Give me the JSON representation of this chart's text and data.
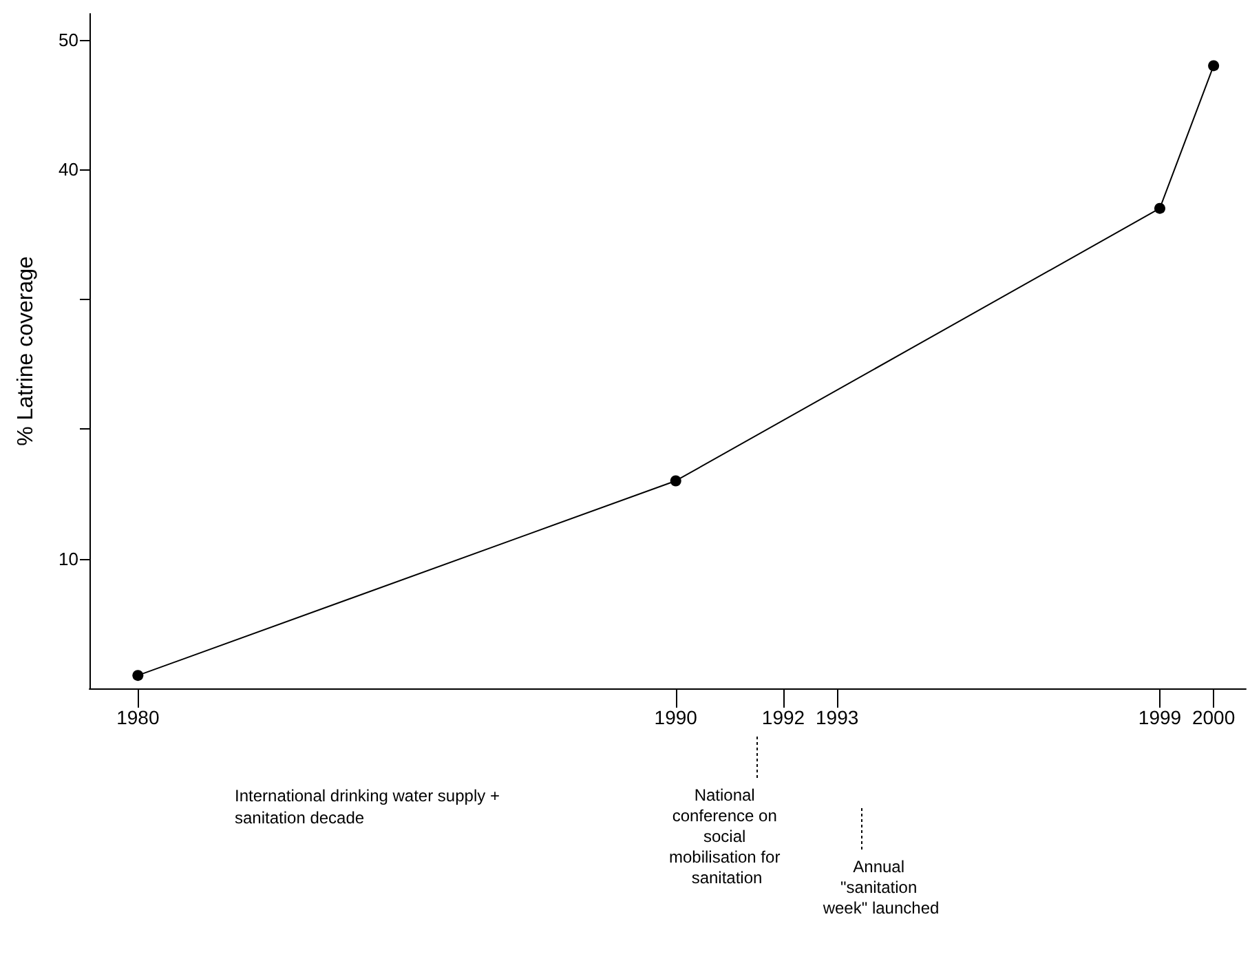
{
  "chart_data": {
    "type": "line",
    "ylabel": "% Latrine coverage",
    "x": [
      1980,
      1990,
      1999,
      2000
    ],
    "values": [
      1,
      16,
      37,
      48
    ],
    "color": "#000000",
    "marker": "circle",
    "line_style": "solid",
    "grid": false,
    "xlim": [
      1979.1,
      2000.6
    ],
    "xticks": [
      1980,
      1990,
      1992,
      1993,
      1999,
      2000
    ],
    "ylim": [
      0,
      52
    ],
    "yticks": [
      10,
      {
        "value": 20,
        "label": null
      },
      {
        "value": 30,
        "label": null
      },
      40,
      50
    ],
    "annotations": [
      "International drinking water supply + sanitation decade",
      "National conference on social mobilisation for sanitation",
      "Annual \"sanitation week\" launched"
    ]
  }
}
